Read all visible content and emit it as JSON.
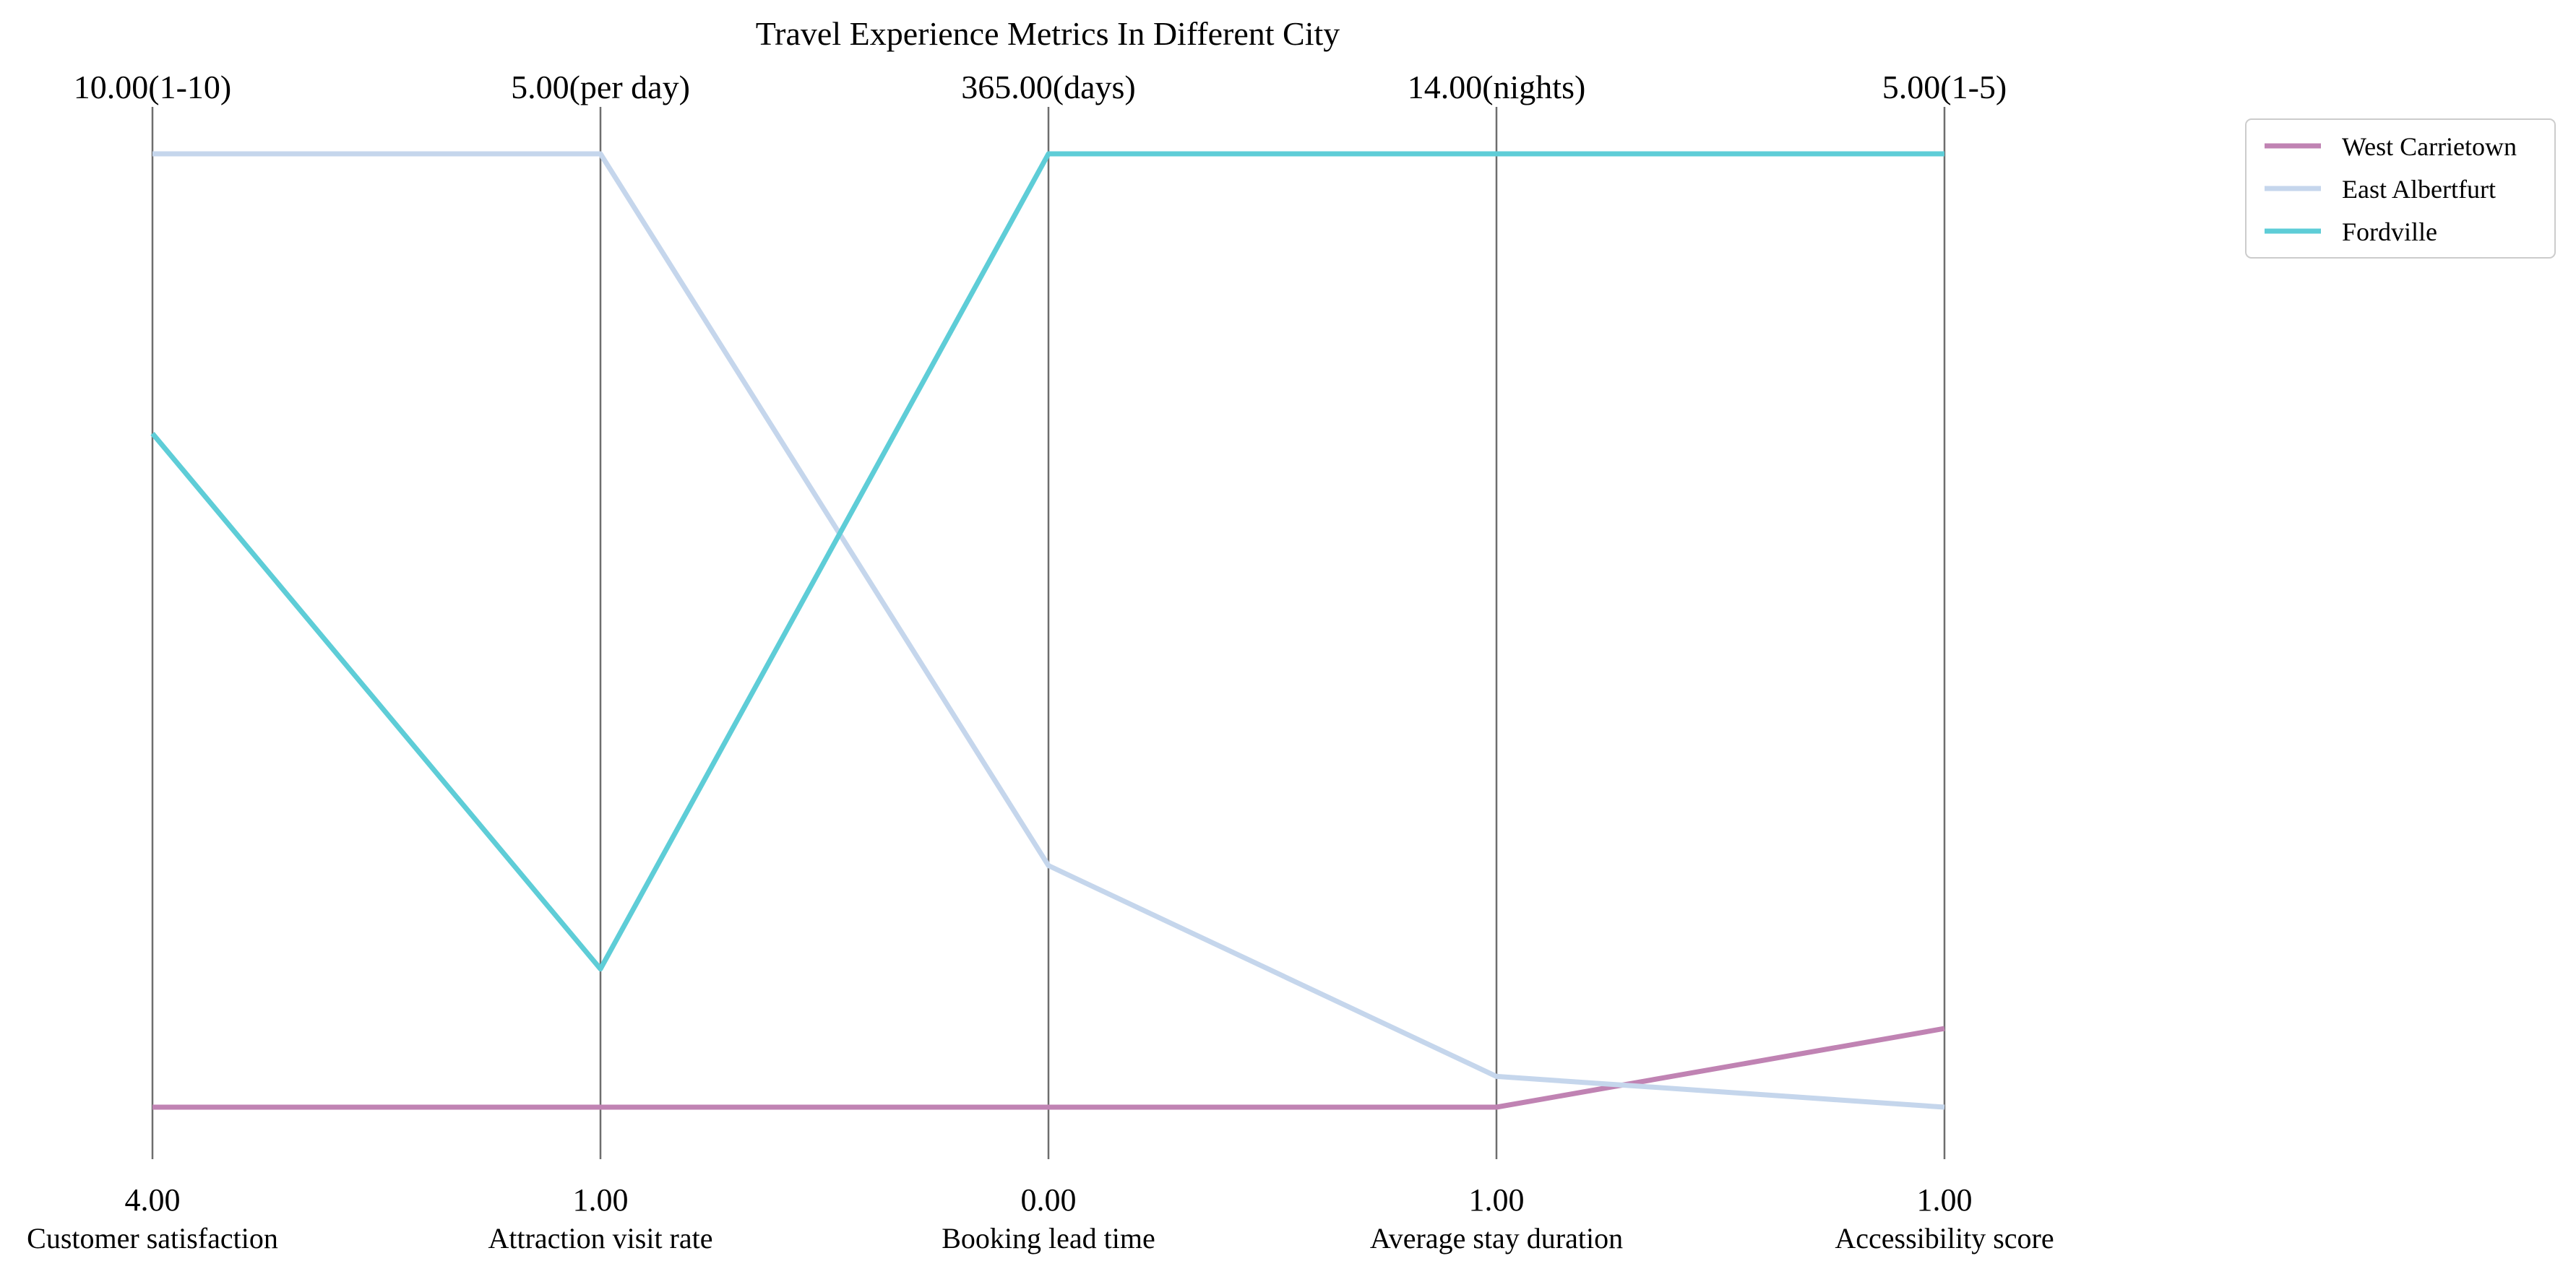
{
  "chart_data": {
    "type": "parallel-coordinates",
    "title": "Travel Experience Metrics In Different City",
    "axes": [
      {
        "name": "Customer satisfaction",
        "min": 4.0,
        "max": 10.0,
        "min_label": "4.00",
        "max_label": "10.00(1-10)"
      },
      {
        "name": "Attraction visit rate",
        "min": 1.0,
        "max": 5.0,
        "min_label": "1.00",
        "max_label": "5.00(per day)"
      },
      {
        "name": "Booking lead time",
        "min": 0.0,
        "max": 365.0,
        "min_label": "0.00",
        "max_label": "365.00(days)"
      },
      {
        "name": "Average stay duration",
        "min": 1.0,
        "max": 14.0,
        "min_label": "1.00",
        "max_label": "14.00(nights)"
      },
      {
        "name": "Accessibility score",
        "min": 1.0,
        "max": 5.0,
        "min_label": "1.00",
        "max_label": "5.00(1-5)"
      }
    ],
    "series": [
      {
        "name": "West Carrietown",
        "color": "#c083b3",
        "values": [
          4.0,
          1.0,
          0.0,
          1.0,
          1.33
        ]
      },
      {
        "name": "East Albertfurt",
        "color": "#c5d6ec",
        "values": [
          10.0,
          5.0,
          92.5,
          1.42,
          1.0
        ]
      },
      {
        "name": "Fordville",
        "color": "#5ecdd7",
        "values": [
          8.24,
          1.58,
          365.0,
          14.0,
          5.0
        ]
      }
    ],
    "legend_position": "top-right",
    "grid": false
  }
}
